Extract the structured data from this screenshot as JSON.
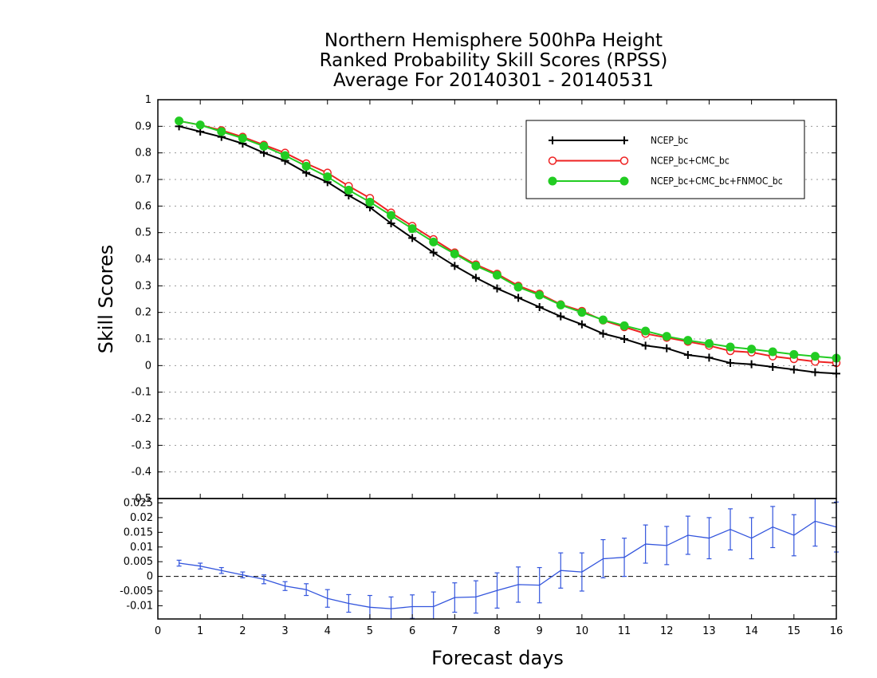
{
  "chart_data": [
    {
      "type": "line",
      "title": [
        "Northern Hemisphere 500hPa Height",
        "Ranked Probability Skill Scores (RPSS)",
        "Average For 20140301 - 20140531"
      ],
      "ylabel": "Skill Scores",
      "xlabel": "Forecast days",
      "xlim": [
        0,
        16
      ],
      "ylim": [
        -0.5,
        1
      ],
      "yticks": [
        1,
        0.9,
        0.8,
        0.7,
        0.6,
        0.5,
        0.4,
        0.3,
        0.2,
        0.1,
        0,
        -0.1,
        -0.2,
        -0.3,
        -0.4,
        -0.5
      ],
      "ytick_labels": [
        "1",
        "0.9",
        "0.8",
        "0.7",
        "0.6",
        "0.5",
        "0.4",
        "0.3",
        "0.2",
        "0.1",
        "0",
        "-0.1",
        "-0.2",
        "-0.3",
        "-0.4",
        "-0.5"
      ],
      "grid": true,
      "legend_position": "top-right",
      "x": [
        0.5,
        1.0,
        1.5,
        2.0,
        2.5,
        3.0,
        3.5,
        4.0,
        4.5,
        5.0,
        5.5,
        6.0,
        6.5,
        7.0,
        7.5,
        8.0,
        8.5,
        9.0,
        9.5,
        10.0,
        10.5,
        11.0,
        11.5,
        12.0,
        12.5,
        13.0,
        13.5,
        14.0,
        14.5,
        15.0,
        15.5,
        16.0
      ],
      "series": [
        {
          "name": "NCEP_bc",
          "color": "#000000",
          "marker": "plus",
          "values": [
            0.9,
            0.88,
            0.86,
            0.835,
            0.8,
            0.77,
            0.725,
            0.69,
            0.64,
            0.595,
            0.535,
            0.48,
            0.425,
            0.375,
            0.33,
            0.29,
            0.255,
            0.22,
            0.185,
            0.155,
            0.12,
            0.1,
            0.075,
            0.065,
            0.04,
            0.03,
            0.01,
            0.005,
            -0.005,
            -0.015,
            -0.025,
            -0.03
          ]
        },
        {
          "name": "NCEP_bc+CMC_bc",
          "color": "#ee2222",
          "marker": "open-circle",
          "values": [
            0.92,
            0.905,
            0.885,
            0.86,
            0.83,
            0.8,
            0.76,
            0.725,
            0.675,
            0.63,
            0.575,
            0.525,
            0.475,
            0.425,
            0.38,
            0.345,
            0.3,
            0.27,
            0.23,
            0.205,
            0.17,
            0.145,
            0.12,
            0.105,
            0.09,
            0.075,
            0.055,
            0.05,
            0.035,
            0.025,
            0.015,
            0.01
          ]
        },
        {
          "name": "NCEP_bc+CMC_bc+FNMOC_bc",
          "color": "#22cc22",
          "marker": "filled-circle",
          "values": [
            0.92,
            0.905,
            0.88,
            0.855,
            0.825,
            0.79,
            0.75,
            0.71,
            0.66,
            0.615,
            0.565,
            0.515,
            0.465,
            0.42,
            0.375,
            0.34,
            0.295,
            0.265,
            0.228,
            0.2,
            0.172,
            0.15,
            0.13,
            0.11,
            0.095,
            0.083,
            0.07,
            0.062,
            0.052,
            0.042,
            0.035,
            0.028
          ]
        }
      ]
    },
    {
      "type": "line",
      "xlabel": "Forecast days",
      "xlim": [
        0,
        16
      ],
      "ylim": [
        -0.0145,
        0.0265
      ],
      "xticks": [
        0,
        1,
        2,
        3,
        4,
        5,
        6,
        7,
        8,
        9,
        10,
        11,
        12,
        13,
        14,
        15,
        16
      ],
      "xtick_labels": [
        "0",
        "1",
        "2",
        "3",
        "4",
        "5",
        "6",
        "7",
        "8",
        "9",
        "10",
        "11",
        "12",
        "13",
        "14",
        "15",
        "16"
      ],
      "yticks": [
        0.025,
        0.02,
        0.015,
        0.01,
        0.005,
        0,
        -0.005,
        -0.01
      ],
      "ytick_labels": [
        "0.025",
        "0.02",
        "0.015",
        "0.01",
        "0.005",
        "0",
        "-0.005",
        "-0.01"
      ],
      "reference_line": 0,
      "x": [
        0.5,
        1.0,
        1.5,
        2.0,
        2.5,
        3.0,
        3.5,
        4.0,
        4.5,
        5.0,
        5.5,
        6.0,
        6.5,
        7.0,
        7.5,
        8.0,
        8.5,
        9.0,
        9.5,
        10.0,
        10.5,
        11.0,
        11.5,
        12.0,
        12.5,
        13.0,
        13.5,
        14.0,
        14.5,
        15.0,
        15.5,
        16.0
      ],
      "series": [
        {
          "color": "#3355dd",
          "values": [
            0.0045,
            0.0035,
            0.002,
            0.0005,
            -0.001,
            -0.0033,
            -0.0045,
            -0.0075,
            -0.0092,
            -0.0105,
            -0.011,
            -0.0103,
            -0.0103,
            -0.0072,
            -0.007,
            -0.0048,
            -0.0028,
            -0.003,
            0.002,
            0.0015,
            0.006,
            0.0065,
            0.011,
            0.0105,
            0.014,
            0.013,
            0.016,
            0.013,
            0.0168,
            0.014,
            0.0188,
            0.0168
          ],
          "error": [
            0.001,
            0.001,
            0.001,
            0.001,
            0.0015,
            0.0015,
            0.002,
            0.003,
            0.003,
            0.004,
            0.004,
            0.004,
            0.005,
            0.005,
            0.0055,
            0.006,
            0.006,
            0.006,
            0.006,
            0.0065,
            0.0065,
            0.0065,
            0.0065,
            0.0065,
            0.0065,
            0.007,
            0.007,
            0.007,
            0.007,
            0.007,
            0.0085,
            0.0085
          ]
        }
      ]
    }
  ]
}
